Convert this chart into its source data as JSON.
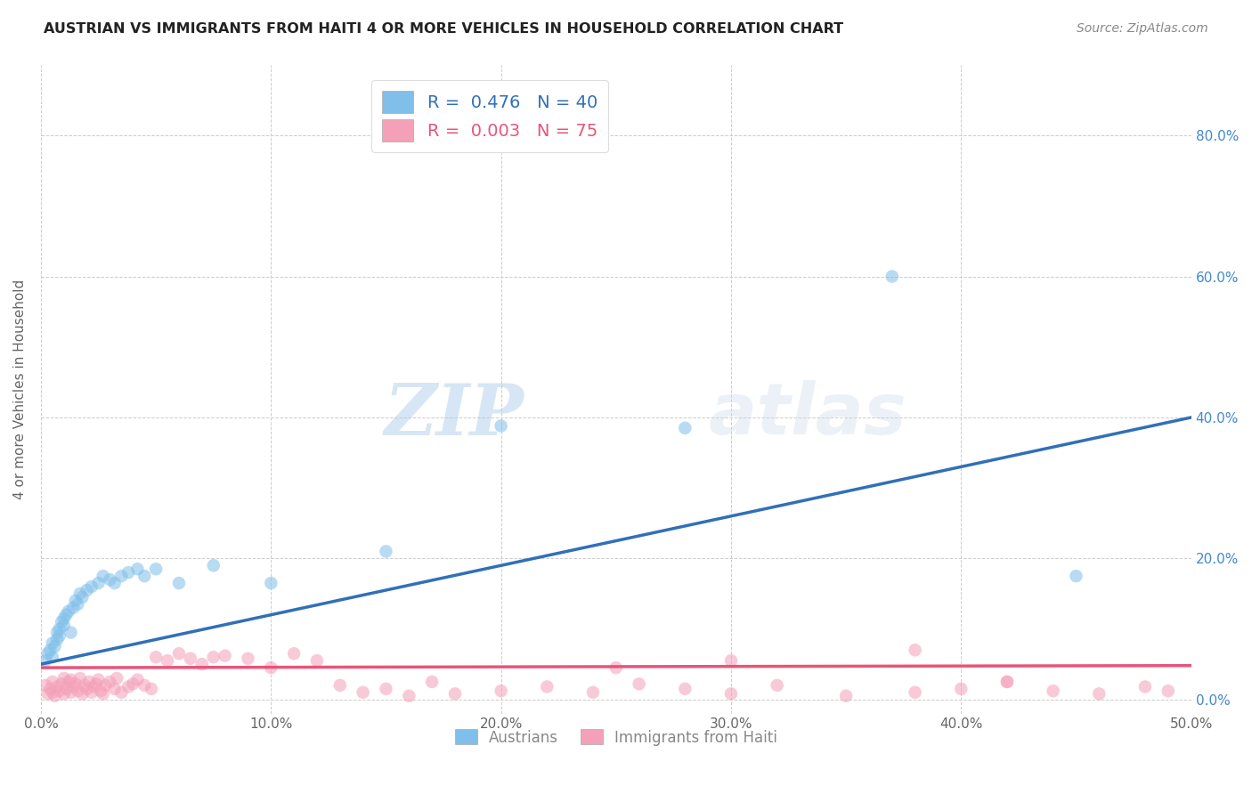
{
  "title": "AUSTRIAN VS IMMIGRANTS FROM HAITI 4 OR MORE VEHICLES IN HOUSEHOLD CORRELATION CHART",
  "source": "Source: ZipAtlas.com",
  "ylabel": "4 or more Vehicles in Household",
  "xlim": [
    0.0,
    0.5
  ],
  "ylim": [
    -0.02,
    0.9
  ],
  "xticks": [
    0.0,
    0.1,
    0.2,
    0.3,
    0.4,
    0.5
  ],
  "xticklabels": [
    "0.0%",
    "10.0%",
    "20.0%",
    "30.0%",
    "40.0%",
    "50.0%"
  ],
  "yticks": [
    0.0,
    0.2,
    0.4,
    0.6,
    0.8
  ],
  "yticklabels": [
    "0.0%",
    "20.0%",
    "40.0%",
    "60.0%",
    "80.0%"
  ],
  "grid_color": "#cccccc",
  "background_color": "#ffffff",
  "blue_color": "#7fbfea",
  "pink_color": "#f4a0b8",
  "blue_line_color": "#3070b8",
  "pink_line_color": "#e8547a",
  "legend_blue_label": "R =  0.476   N = 40",
  "legend_pink_label": "R =  0.003   N = 75",
  "legend_austrians": "Austrians",
  "legend_haiti": "Immigrants from Haiti",
  "watermark_zip": "ZIP",
  "watermark_atlas": "atlas",
  "blue_R": 0.476,
  "blue_N": 40,
  "pink_R": 0.003,
  "pink_N": 75,
  "blue_x": [
    0.002,
    0.003,
    0.004,
    0.005,
    0.005,
    0.006,
    0.007,
    0.007,
    0.008,
    0.008,
    0.009,
    0.01,
    0.01,
    0.011,
    0.012,
    0.013,
    0.014,
    0.015,
    0.016,
    0.017,
    0.018,
    0.02,
    0.022,
    0.025,
    0.027,
    0.03,
    0.032,
    0.035,
    0.038,
    0.042,
    0.045,
    0.05,
    0.06,
    0.075,
    0.1,
    0.15,
    0.2,
    0.28,
    0.37,
    0.45
  ],
  "blue_y": [
    0.055,
    0.065,
    0.07,
    0.06,
    0.08,
    0.075,
    0.085,
    0.095,
    0.09,
    0.1,
    0.11,
    0.105,
    0.115,
    0.12,
    0.125,
    0.095,
    0.13,
    0.14,
    0.135,
    0.15,
    0.145,
    0.155,
    0.16,
    0.165,
    0.175,
    0.17,
    0.165,
    0.175,
    0.18,
    0.185,
    0.175,
    0.185,
    0.165,
    0.19,
    0.165,
    0.21,
    0.388,
    0.385,
    0.6,
    0.175
  ],
  "pink_x": [
    0.002,
    0.003,
    0.004,
    0.005,
    0.005,
    0.006,
    0.007,
    0.008,
    0.009,
    0.01,
    0.01,
    0.011,
    0.012,
    0.013,
    0.013,
    0.014,
    0.015,
    0.016,
    0.017,
    0.018,
    0.019,
    0.02,
    0.021,
    0.022,
    0.023,
    0.024,
    0.025,
    0.026,
    0.027,
    0.028,
    0.03,
    0.032,
    0.033,
    0.035,
    0.038,
    0.04,
    0.042,
    0.045,
    0.048,
    0.05,
    0.055,
    0.06,
    0.065,
    0.07,
    0.075,
    0.08,
    0.09,
    0.1,
    0.11,
    0.12,
    0.13,
    0.14,
    0.15,
    0.16,
    0.17,
    0.18,
    0.2,
    0.22,
    0.24,
    0.26,
    0.28,
    0.3,
    0.32,
    0.35,
    0.38,
    0.4,
    0.42,
    0.44,
    0.46,
    0.48,
    0.49,
    0.25,
    0.3,
    0.38,
    0.42
  ],
  "pink_y": [
    0.02,
    0.008,
    0.015,
    0.01,
    0.025,
    0.005,
    0.018,
    0.012,
    0.022,
    0.008,
    0.03,
    0.015,
    0.025,
    0.01,
    0.028,
    0.018,
    0.022,
    0.012,
    0.03,
    0.008,
    0.02,
    0.015,
    0.025,
    0.01,
    0.018,
    0.022,
    0.028,
    0.012,
    0.008,
    0.02,
    0.025,
    0.015,
    0.03,
    0.01,
    0.018,
    0.022,
    0.028,
    0.02,
    0.015,
    0.06,
    0.055,
    0.065,
    0.058,
    0.05,
    0.06,
    0.062,
    0.058,
    0.045,
    0.065,
    0.055,
    0.02,
    0.01,
    0.015,
    0.005,
    0.025,
    0.008,
    0.012,
    0.018,
    0.01,
    0.022,
    0.015,
    0.008,
    0.02,
    0.005,
    0.01,
    0.015,
    0.025,
    0.012,
    0.008,
    0.018,
    0.012,
    0.045,
    0.055,
    0.07,
    0.025
  ]
}
